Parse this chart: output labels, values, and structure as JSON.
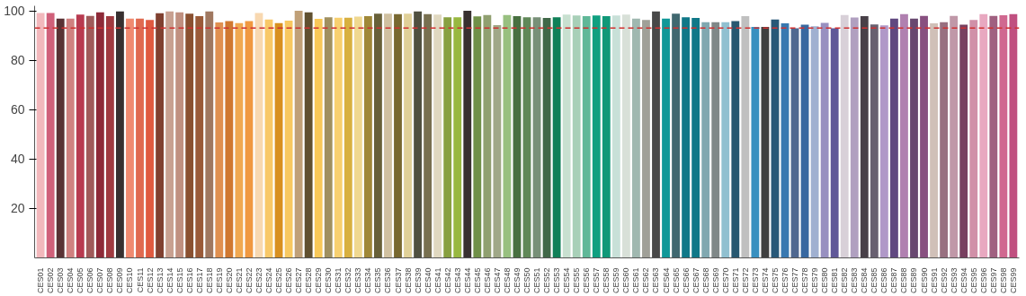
{
  "chart_data": {
    "type": "bar",
    "categories": [
      "CES01",
      "CES02",
      "CES03",
      "CES04",
      "CES05",
      "CES06",
      "CES07",
      "CES08",
      "CES09",
      "CES10",
      "CES11",
      "CES12",
      "CES13",
      "CES14",
      "CES15",
      "CES16",
      "CES17",
      "CES18",
      "CES19",
      "CES20",
      "CES21",
      "CES22",
      "CES23",
      "CES24",
      "CES25",
      "CES26",
      "CES27",
      "CES28",
      "CES29",
      "CES30",
      "CES31",
      "CES32",
      "CES33",
      "CES34",
      "CES35",
      "CES36",
      "CES37",
      "CES38",
      "CES39",
      "CES40",
      "CES41",
      "CES42",
      "CES43",
      "CES44",
      "CES45",
      "CES46",
      "CES47",
      "CES48",
      "CES49",
      "CES50",
      "CES51",
      "CES52",
      "CES53",
      "CES54",
      "CES55",
      "CES56",
      "CES57",
      "CES58",
      "CES59",
      "CES60",
      "CES61",
      "CES62",
      "CES63",
      "CES64",
      "CES65",
      "CES66",
      "CES67",
      "CES68",
      "CES69",
      "CES70",
      "CES71",
      "CES72",
      "CES73",
      "CES74",
      "CES75",
      "CES76",
      "CES77",
      "CES78",
      "CES79",
      "CES80",
      "CES81",
      "CES82",
      "CES83",
      "CES84",
      "CES85",
      "CES86",
      "CES87",
      "CES88",
      "CES89",
      "CES90",
      "CES91",
      "CES92",
      "CES93",
      "CES94",
      "CES95",
      "CES96",
      "CES97",
      "CES98",
      "CES99"
    ],
    "values": [
      99.1,
      99.1,
      96.8,
      96.8,
      98.5,
      97.9,
      99.4,
      97.8,
      99.7,
      96.8,
      96.8,
      96.3,
      99.0,
      99.7,
      99.4,
      98.8,
      97.8,
      99.7,
      95.3,
      95.8,
      95.0,
      95.8,
      99.1,
      96.5,
      95.0,
      96.0,
      100,
      99.4,
      96.7,
      97.4,
      97.2,
      97.2,
      97.6,
      97.8,
      98.8,
      98.8,
      98.6,
      98.8,
      99.7,
      98.6,
      98.5,
      97.4,
      97.4,
      100,
      97.7,
      98.3,
      94.2,
      98.3,
      97.8,
      97.4,
      97.4,
      97.1,
      97.4,
      98.5,
      98.1,
      97.8,
      98.1,
      97.8,
      98.1,
      98.5,
      96.8,
      96.3,
      99.7,
      96.8,
      98.8,
      97.4,
      97.1,
      95.4,
      95.4,
      95.4,
      95.8,
      97.8,
      93.5,
      93.5,
      96.5,
      94.9,
      92.9,
      94.4,
      93.7,
      95.1,
      92.9,
      98.3,
      97.3,
      97.8,
      94.5,
      94.1,
      96.8,
      98.6,
      96.8,
      97.9,
      94.9,
      95.4,
      97.9,
      94.4,
      96.3,
      98.6,
      97.9,
      98.2,
      98.6
    ],
    "colors": [
      "#f2b8bc",
      "#d0607a",
      "#5a3235",
      "#d08080",
      "#b83a50",
      "#a05a5a",
      "#8e2a38",
      "#a03a40",
      "#383030",
      "#f08a70",
      "#e06a50",
      "#e05a40",
      "#804030",
      "#c8a090",
      "#c09080",
      "#8a5030",
      "#9a5a38",
      "#a07860",
      "#e09050",
      "#d07830",
      "#f0a850",
      "#f09840",
      "#f8d8b0",
      "#f8c868",
      "#d89020",
      "#f8c860",
      "#c0a078",
      "#605030",
      "#f8c858",
      "#a09060",
      "#f8d070",
      "#d8b040",
      "#f0d890",
      "#a08838",
      "#686038",
      "#d0c0a0",
      "#786830",
      "#e0d098",
      "#505040",
      "#787050",
      "#e0d8c0",
      "#88a040",
      "#98b840",
      "#383030",
      "#709048",
      "#90a070",
      "#a0a888",
      "#98c080",
      "#487040",
      "#608858",
      "#789078",
      "#406848",
      "#108058",
      "#c8e0d0",
      "#a8d0b8",
      "#60b898",
      "#10a080",
      "#109878",
      "#c8e0d8",
      "#d8e0d8",
      "#a0b8b0",
      "#a0a098",
      "#484848",
      "#109898",
      "#406870",
      "#107888",
      "#107888",
      "#80a8b0",
      "#808888",
      "#90c0d0",
      "#285870",
      "#c0c0c0",
      "#3890c0",
      "#404040",
      "#285878",
      "#3878b0",
      "#506890",
      "#3868a0",
      "#a0b0d0",
      "#9890c0",
      "#605898",
      "#d8d0d8",
      "#b0a0c0",
      "#484048",
      "#686070",
      "#b098c8",
      "#604880",
      "#b080b0",
      "#684870",
      "#885080",
      "#d0c0b8",
      "#987080",
      "#c098a8",
      "#784060",
      "#d090a8",
      "#e8a8c0",
      "#a06080",
      "#d06890",
      "#c05080"
    ],
    "ylim": [
      0,
      102
    ],
    "yticks": [
      20,
      40,
      60,
      80,
      100
    ],
    "ref_lines": [
      {
        "axis": "y",
        "value": 93,
        "color": "#d03030",
        "line_style": "dashed"
      }
    ]
  }
}
